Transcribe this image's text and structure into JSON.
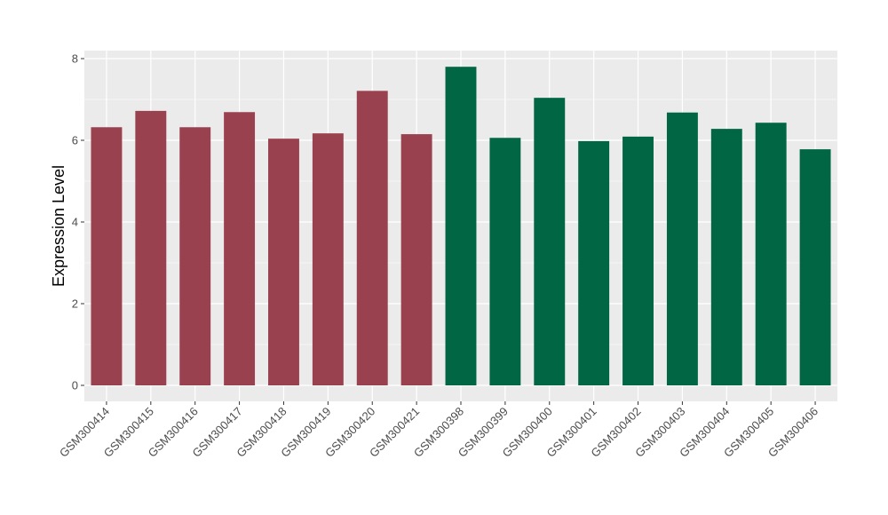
{
  "chart_data": {
    "type": "bar",
    "title": "",
    "xlabel": "",
    "ylabel": "Expression Level",
    "ylim": [
      0,
      8
    ],
    "yticks": [
      0,
      2,
      4,
      6,
      8
    ],
    "grid": true,
    "legend": "none",
    "categories": [
      "GSM300414",
      "GSM300415",
      "GSM300416",
      "GSM300417",
      "GSM300418",
      "GSM300419",
      "GSM300420",
      "GSM300421",
      "GSM300398",
      "GSM300399",
      "GSM300400",
      "GSM300401",
      "GSM300402",
      "GSM300403",
      "GSM300404",
      "GSM300405",
      "GSM300406"
    ],
    "values": [
      6.32,
      6.72,
      6.32,
      6.69,
      6.04,
      6.17,
      7.21,
      6.15,
      7.8,
      6.06,
      7.04,
      5.98,
      6.09,
      6.68,
      6.28,
      6.43,
      5.78
    ],
    "bar_colors": [
      "#9a4150",
      "#9a4150",
      "#9a4150",
      "#9a4150",
      "#9a4150",
      "#9a4150",
      "#9a4150",
      "#9a4150",
      "#006644",
      "#006644",
      "#006644",
      "#006644",
      "#006644",
      "#006644",
      "#006644",
      "#006644",
      "#006644"
    ],
    "panel_background": "#ebebeb",
    "grid_color": "#ffffff"
  }
}
